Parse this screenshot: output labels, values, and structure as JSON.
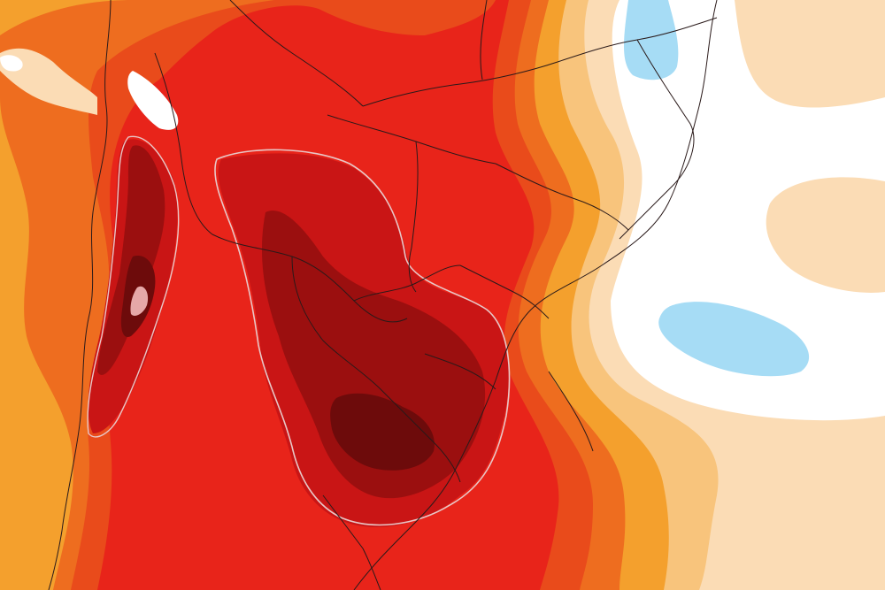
{
  "map": {
    "type": "temperature-anomaly-heatmap",
    "region": "south-america",
    "colors": {
      "ocean_white": "#ffffff",
      "cool_blue": "#a6dcf5",
      "pale_tan": "#fbdcb5",
      "light_orange": "#f8c47c",
      "orange": "#f4a02d",
      "dark_orange": "#ee6d1f",
      "red_orange": "#e94b1b",
      "red": "#e8241a",
      "dark_red": "#c91515",
      "maroon": "#9b0f0f",
      "deep_maroon": "#6d0b0b",
      "isoline": "#e8c7c7",
      "border": "#2a1a1a"
    }
  }
}
